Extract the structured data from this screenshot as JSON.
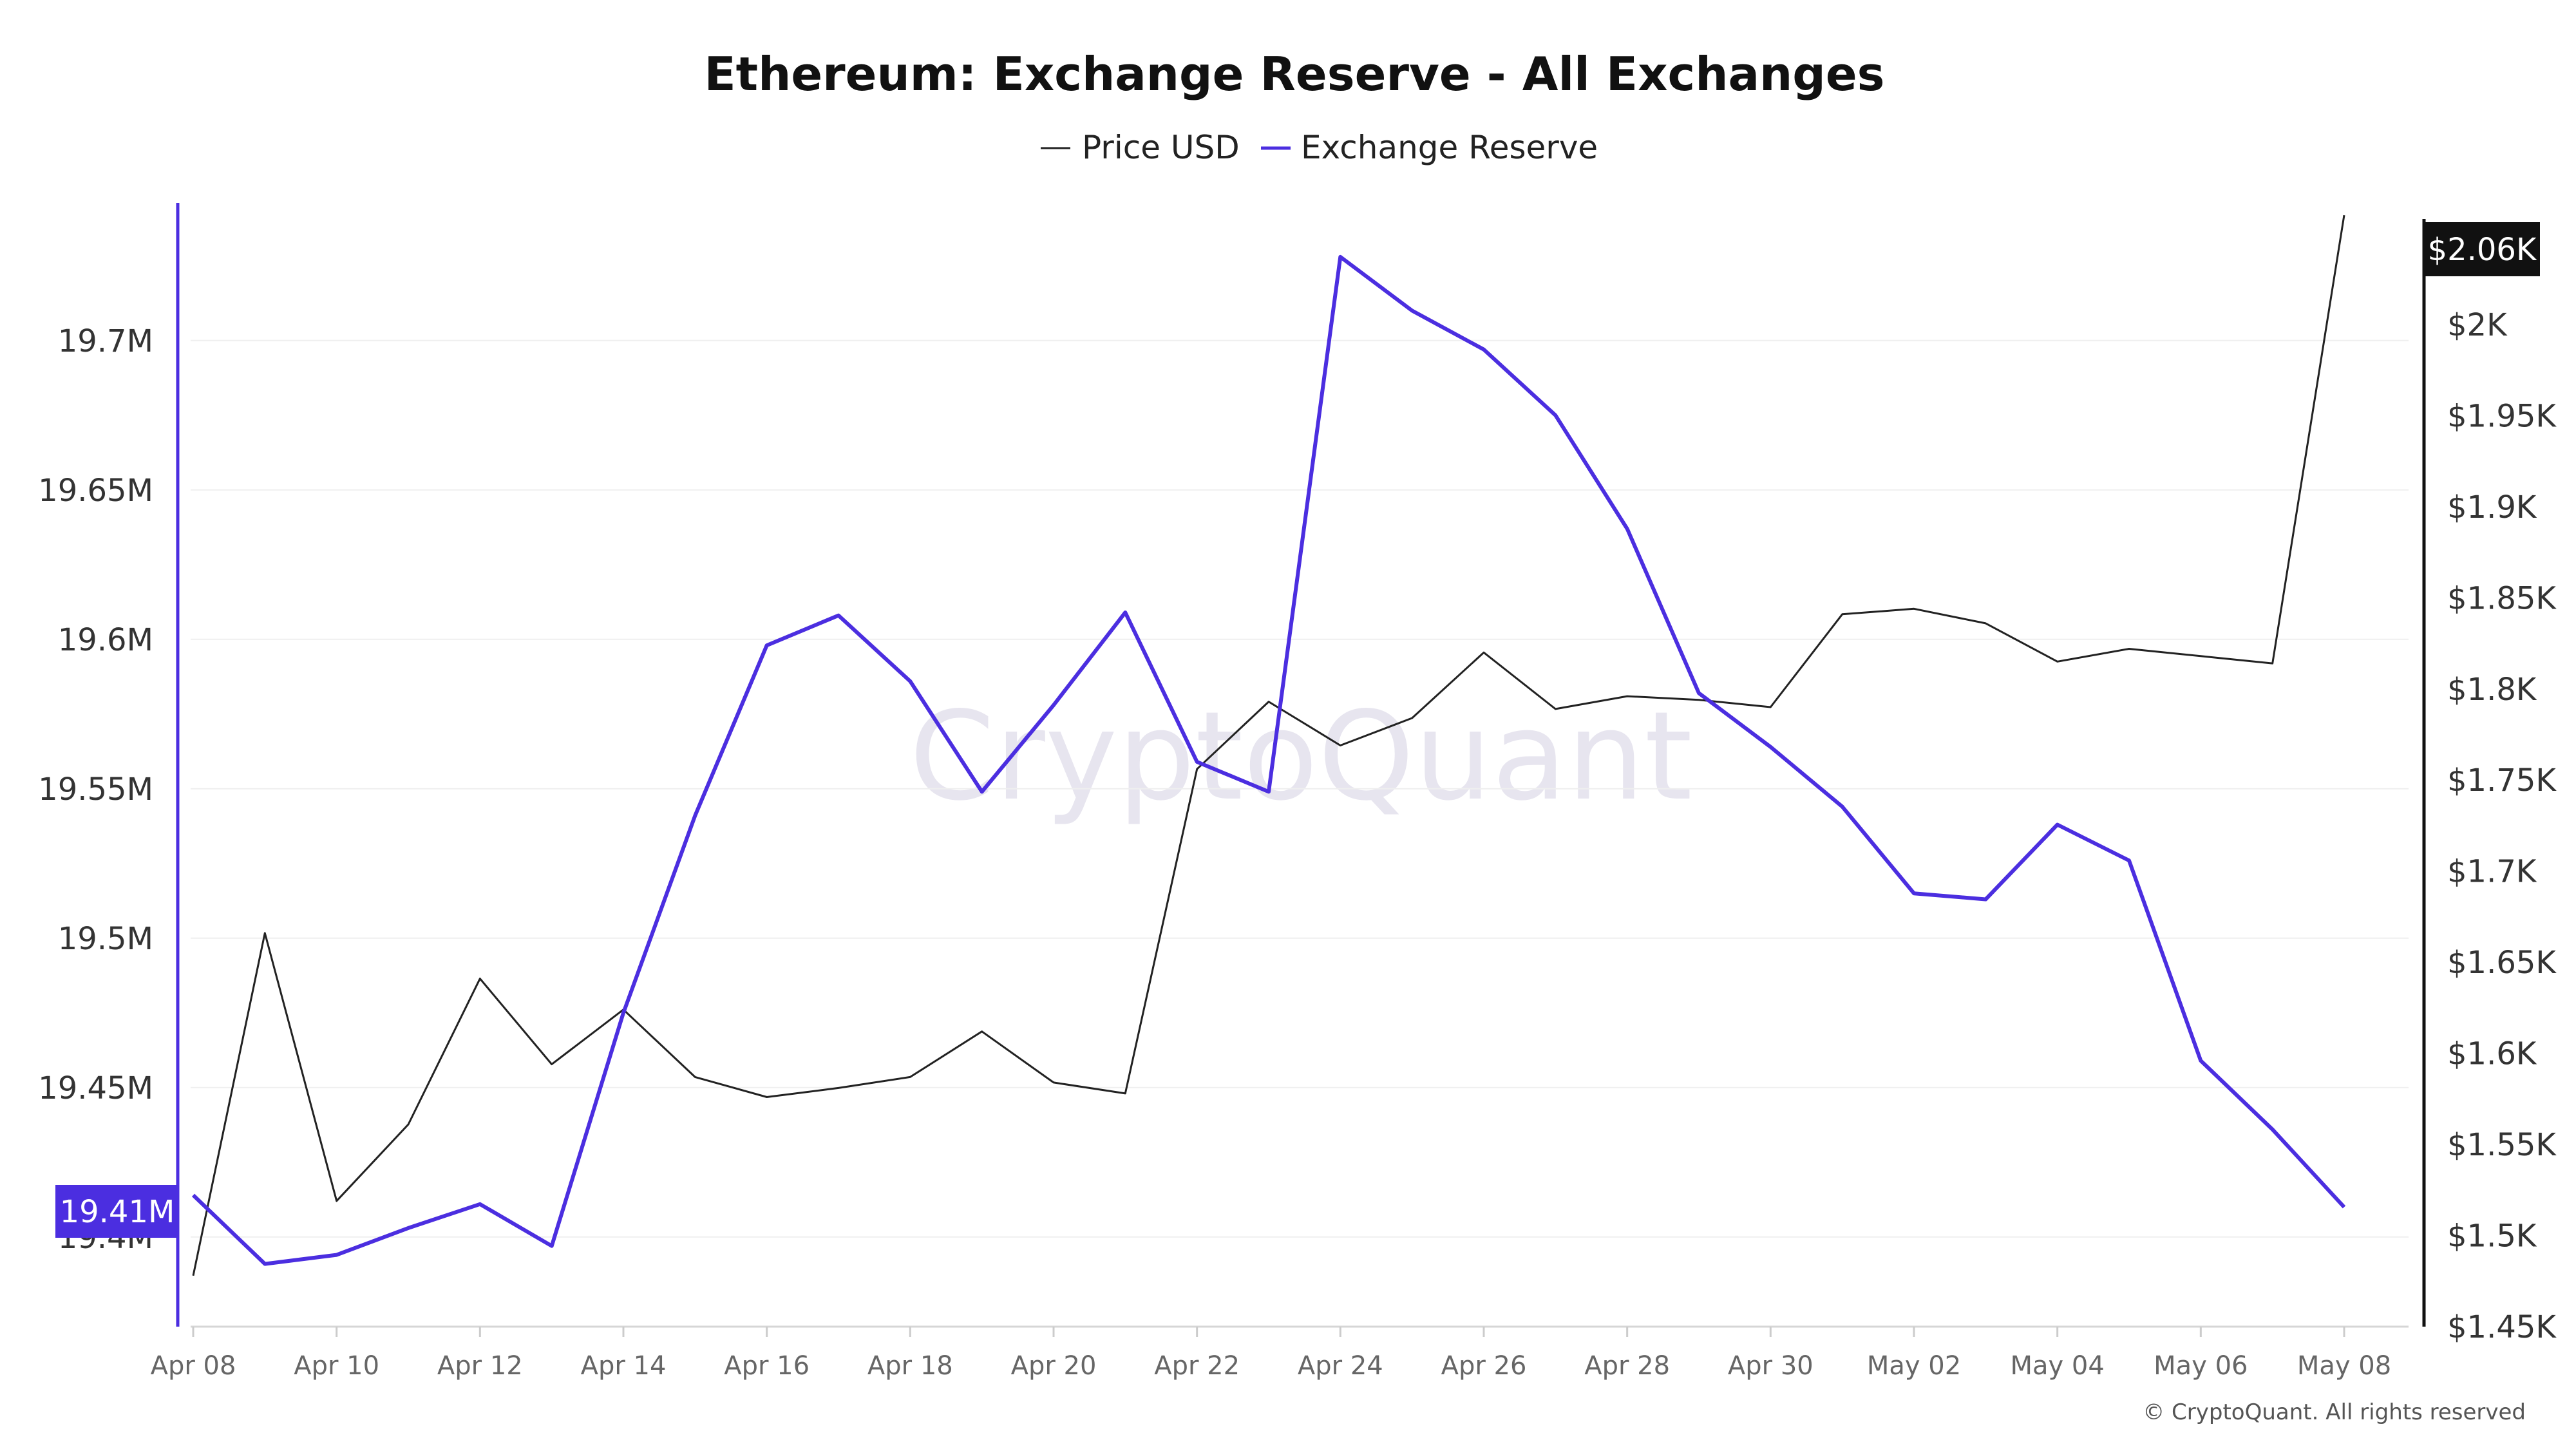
{
  "chart_data": {
    "type": "line",
    "title": "Ethereum: Exchange Reserve - All Exchanges",
    "x": [
      "Apr 08",
      "Apr 09",
      "Apr 10",
      "Apr 11",
      "Apr 12",
      "Apr 13",
      "Apr 14",
      "Apr 15",
      "Apr 16",
      "Apr 17",
      "Apr 18",
      "Apr 19",
      "Apr 20",
      "Apr 21",
      "Apr 22",
      "Apr 23",
      "Apr 24",
      "Apr 25",
      "Apr 26",
      "Apr 27",
      "Apr 28",
      "Apr 29",
      "Apr 30",
      "May 01",
      "May 02",
      "May 03",
      "May 04",
      "May 05",
      "May 06",
      "May 07",
      "May 08"
    ],
    "x_tick_labels": [
      "Apr 08",
      "Apr 10",
      "Apr 12",
      "Apr 14",
      "Apr 16",
      "Apr 18",
      "Apr 20",
      "Apr 22",
      "Apr 24",
      "Apr 26",
      "Apr 28",
      "Apr 30",
      "May 02",
      "May 04",
      "May 06",
      "May 08"
    ],
    "series": [
      {
        "name": "Price USD",
        "axis": "right",
        "color": "#222222",
        "values": [
          1478,
          1666,
          1519,
          1561,
          1641,
          1594,
          1624,
          1587,
          1576,
          1581,
          1587,
          1612,
          1584,
          1578,
          1756,
          1793,
          1769,
          1784,
          1820,
          1789,
          1796,
          1794,
          1790,
          1841,
          1844,
          1836,
          1815,
          1822,
          1818,
          1814,
          2060
        ]
      },
      {
        "name": "Exchange Reserve",
        "axis": "left",
        "color": "#4b2ee0",
        "values": [
          19.414,
          19.391,
          19.394,
          19.403,
          19.411,
          19.397,
          19.475,
          19.541,
          19.598,
          19.608,
          19.586,
          19.549,
          19.578,
          19.609,
          19.559,
          19.549,
          19.728,
          19.71,
          19.697,
          19.675,
          19.637,
          19.582,
          19.564,
          19.544,
          19.515,
          19.513,
          19.538,
          19.526,
          19.459,
          19.436,
          19.41
        ]
      }
    ],
    "y_left": {
      "ticks": [
        "19.4M",
        "19.45M",
        "19.5M",
        "19.55M",
        "19.6M",
        "19.65M",
        "19.7M"
      ],
      "tick_values": [
        19.4,
        19.45,
        19.5,
        19.55,
        19.6,
        19.65,
        19.7
      ],
      "ylim": [
        19.37,
        19.745
      ],
      "current_label": "19.41M"
    },
    "y_right": {
      "ticks": [
        "$1.45K",
        "$1.5K",
        "$1.55K",
        "$1.6K",
        "$1.65K",
        "$1.7K",
        "$1.75K",
        "$1.8K",
        "$1.85K",
        "$1.9K",
        "$1.95K",
        "$2K"
      ],
      "tick_values": [
        1450,
        1500,
        1550,
        1600,
        1650,
        1700,
        1750,
        1800,
        1850,
        1900,
        1950,
        2000
      ],
      "ylim": [
        1450,
        2065
      ],
      "current_label": "$2.06K"
    },
    "legend_position": "top-center",
    "grid": true
  },
  "watermark": "CryptoQuant",
  "copyright": "© CryptoQuant. All rights reserved"
}
